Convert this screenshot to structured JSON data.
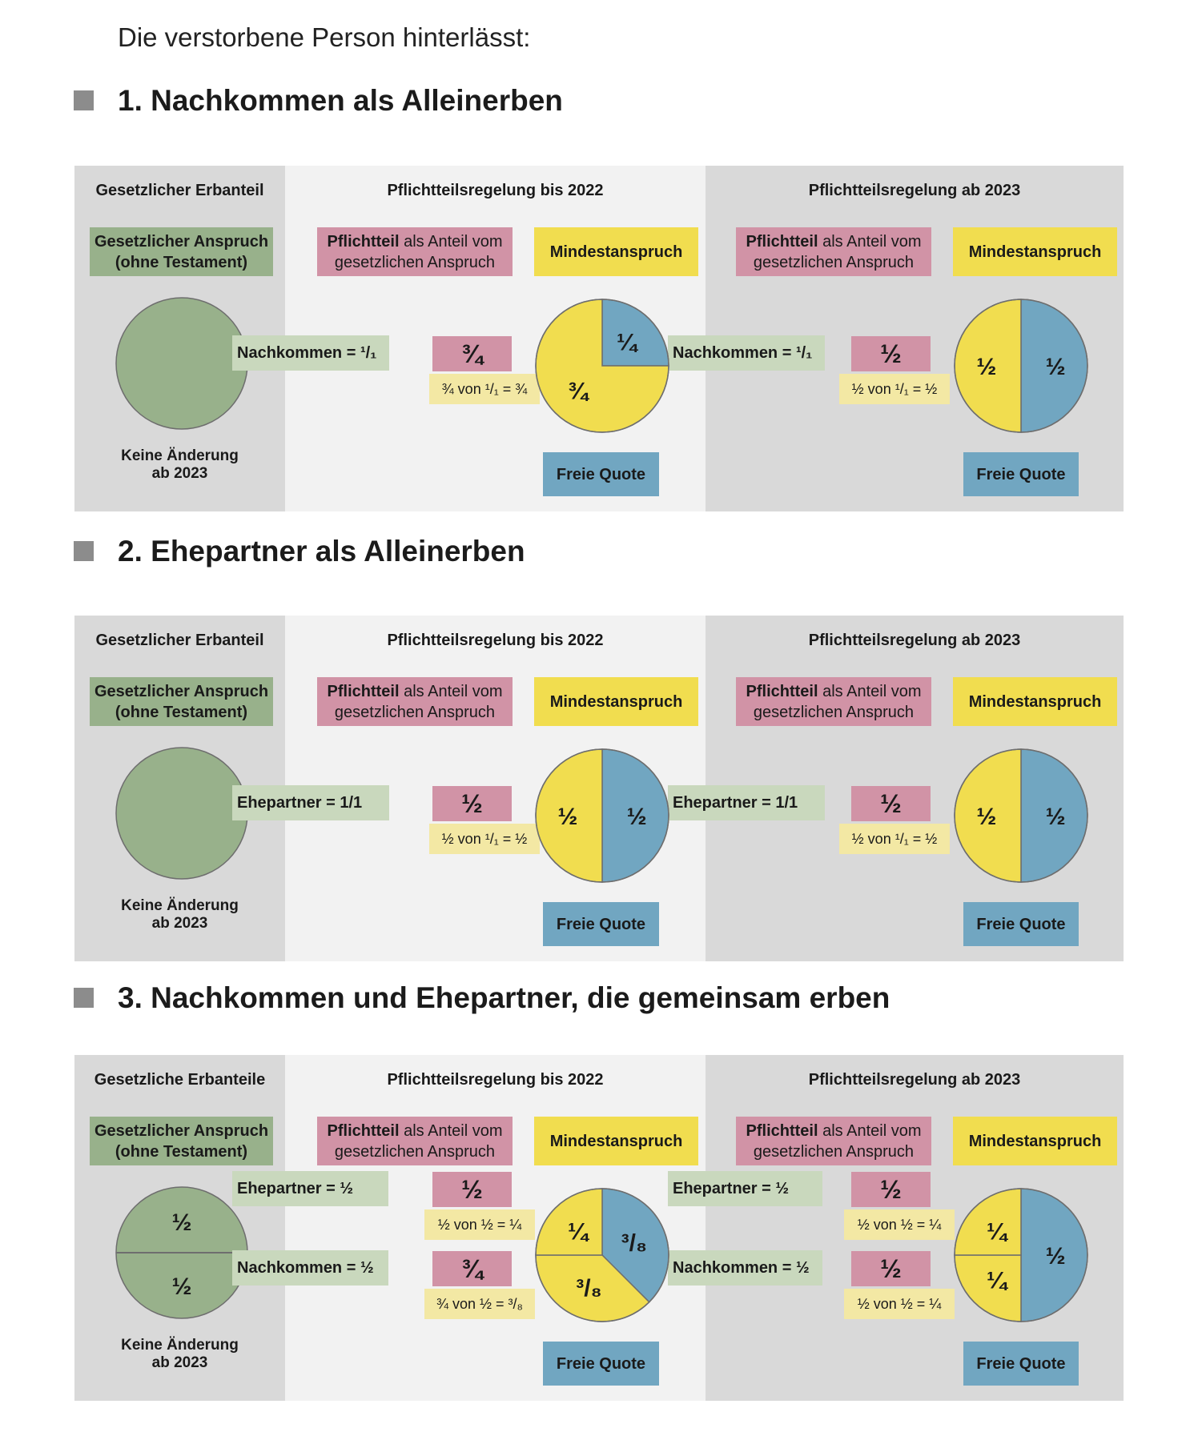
{
  "intro": "Die verstorbene Person hinterlässt:",
  "colors": {
    "green": "#98b18b",
    "pink": "#d193a6",
    "yellow": "#f1dd4f",
    "blue": "#71a6c1",
    "lightgreen": "#c9d8bd",
    "lightyellow": "#f3e8a4",
    "square": "#8c8c8c"
  },
  "sections": [
    {
      "heading": "1. Nachkommen als Alleinerben",
      "col1_header": "Gesetzlicher Erbanteil",
      "col2_header": "Pflichtteilsregelung bis 2022",
      "col3_header": "Pflichtteilsregelung ab 2023",
      "claim_bold": "Gesetzlicher Anspruch",
      "claim_sub": "(ohne Testament)",
      "pflicht_bold": "Pflichtteil",
      "pflicht_rest": "als Anteil vom",
      "pflicht_line2": "gesetzlichen Anspruch",
      "mindest": "Mindestanspruch",
      "freie_quote": "Freie Quote",
      "note_line1": "Keine Änderung",
      "note_line2": "ab 2023",
      "rows_2022": [
        {
          "heir": "Nachkommen = ¹/₁",
          "share": "¾",
          "calc": "¾ von ¹/₁ = ¾"
        }
      ],
      "rows_2023": [
        {
          "heir": "Nachkommen = ¹/₁",
          "share": "½",
          "calc": "½ von ¹/₁ = ½"
        }
      ],
      "pie_left": {
        "values": [
          1
        ],
        "labels": [
          ""
        ]
      },
      "pie_2022": {
        "slices": [
          {
            "value": 0.25,
            "label": "¼",
            "color": "blue"
          },
          {
            "value": 0.75,
            "label": "¾",
            "color": "yellow"
          }
        ]
      },
      "pie_2023": {
        "slices": [
          {
            "value": 0.5,
            "label": "½",
            "color": "blue"
          },
          {
            "value": 0.5,
            "label": "½",
            "color": "yellow"
          }
        ]
      }
    },
    {
      "heading": "2. Ehepartner als Alleinerben",
      "col1_header": "Gesetzlicher Erbanteil",
      "col2_header": "Pflichtteilsregelung bis 2022",
      "col3_header": "Pflichtteilsregelung ab 2023",
      "claim_bold": "Gesetzlicher Anspruch",
      "claim_sub": "(ohne Testament)",
      "pflicht_bold": "Pflichtteil",
      "pflicht_rest": "als Anteil vom",
      "pflicht_line2": "gesetzlichen Anspruch",
      "mindest": "Mindestanspruch",
      "freie_quote": "Freie Quote",
      "note_line1": "Keine Änderung",
      "note_line2": "ab 2023",
      "rows_2022": [
        {
          "heir": "Ehepartner = 1/1",
          "share": "½",
          "calc": "½ von ¹/₁ = ½"
        }
      ],
      "rows_2023": [
        {
          "heir": "Ehepartner = 1/1",
          "share": "½",
          "calc": "½ von ¹/₁ = ½"
        }
      ],
      "pie_left": {
        "values": [
          1
        ],
        "labels": [
          ""
        ]
      },
      "pie_2022": {
        "slices": [
          {
            "value": 0.5,
            "label": "½",
            "color": "blue"
          },
          {
            "value": 0.5,
            "label": "½",
            "color": "yellow"
          }
        ]
      },
      "pie_2023": {
        "slices": [
          {
            "value": 0.5,
            "label": "½",
            "color": "blue"
          },
          {
            "value": 0.5,
            "label": "½",
            "color": "yellow"
          }
        ]
      }
    },
    {
      "heading": "3. Nachkommen und Ehepartner, die gemeinsam erben",
      "col1_header": "Gesetzliche Erbanteile",
      "col2_header": "Pflichtteilsregelung bis 2022",
      "col3_header": "Pflichtteilsregelung ab 2023",
      "claim_bold": "Gesetzlicher Anspruch",
      "claim_sub": "(ohne Testament)",
      "pflicht_bold": "Pflichtteil",
      "pflicht_rest": "als Anteil vom",
      "pflicht_line2": "gesetzlichen Anspruch",
      "mindest": "Mindestanspruch",
      "freie_quote": "Freie Quote",
      "note_line1": "Keine Änderung",
      "note_line2": "ab 2023",
      "rows_2022": [
        {
          "heir": "Ehepartner = ½",
          "share": "½",
          "calc": "½ von ½ = ¼"
        },
        {
          "heir": "Nachkommen = ½",
          "share": "¾",
          "calc": "¾ von ½ = ³/₈"
        }
      ],
      "rows_2023": [
        {
          "heir": "Ehepartner = ½",
          "share": "½",
          "calc": "½ von ½ = ¼"
        },
        {
          "heir": "Nachkommen = ½",
          "share": "½",
          "calc": "½ von ½ = ¼"
        }
      ],
      "pie_left": {
        "values": [
          0.5,
          0.5
        ],
        "labels": [
          "½",
          "½"
        ]
      },
      "pie_2022": {
        "slices": [
          {
            "value": 0.375,
            "label": "³/₈",
            "color": "blue"
          },
          {
            "value": 0.375,
            "label": "³/₈",
            "color": "yellow"
          },
          {
            "value": 0.25,
            "label": "¼",
            "color": "yellow"
          }
        ]
      },
      "pie_2023": {
        "slices": [
          {
            "value": 0.5,
            "label": "½",
            "color": "blue"
          },
          {
            "value": 0.25,
            "label": "¼",
            "color": "yellow"
          },
          {
            "value": 0.25,
            "label": "¼",
            "color": "yellow"
          }
        ]
      }
    }
  ]
}
